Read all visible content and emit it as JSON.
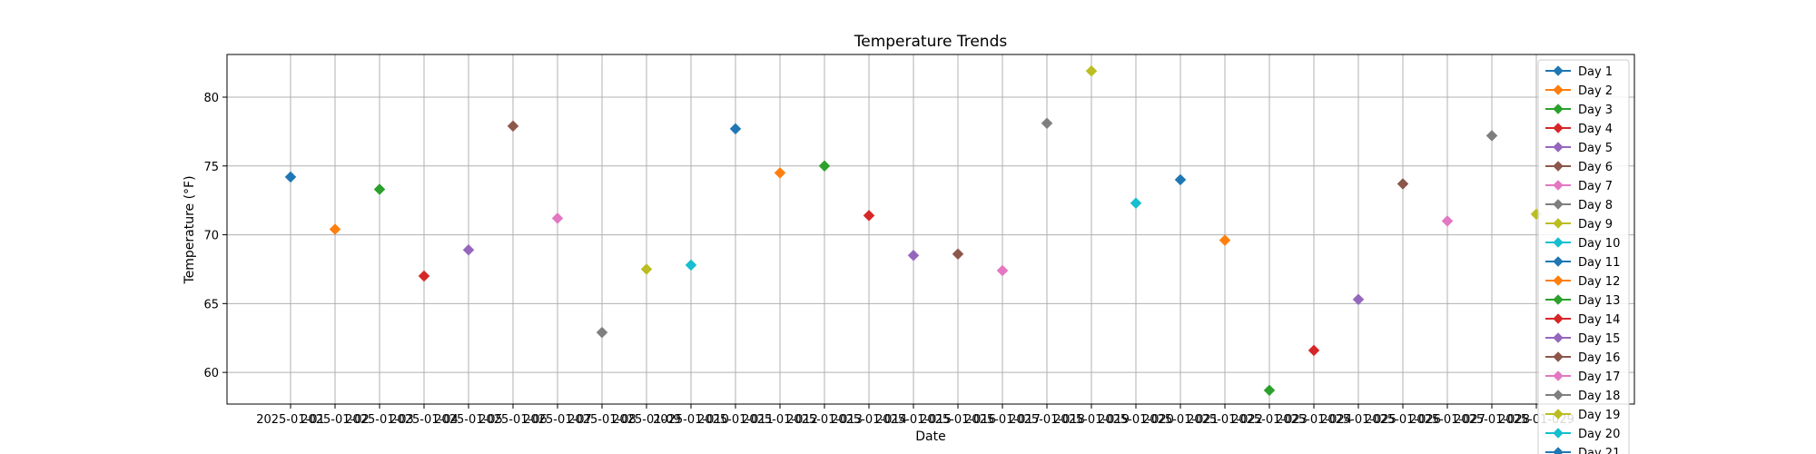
{
  "chart_data": {
    "type": "scatter",
    "title": "Temperature Trends",
    "xlabel": "Date",
    "ylabel": "Temperature (°F)",
    "x_tick_label": "2025-01-0",
    "y_ticks": [
      60,
      65,
      70,
      75,
      80
    ],
    "ylim": [
      57.7,
      83.1
    ],
    "grid": true,
    "legend_position": "upper right",
    "marker": "diamond",
    "colors": [
      "#1f77b4",
      "#ff7f0e",
      "#2ca02c",
      "#d62728",
      "#9467bd",
      "#8c564b",
      "#e377c2",
      "#7f7f7f",
      "#bcbd22",
      "#17becf"
    ],
    "series": [
      {
        "name": "Day 1",
        "x": 1,
        "y": 74.2
      },
      {
        "name": "Day 2",
        "x": 2,
        "y": 70.4
      },
      {
        "name": "Day 3",
        "x": 3,
        "y": 73.3
      },
      {
        "name": "Day 4",
        "x": 4,
        "y": 67.0
      },
      {
        "name": "Day 5",
        "x": 5,
        "y": 68.9
      },
      {
        "name": "Day 6",
        "x": 6,
        "y": 77.9
      },
      {
        "name": "Day 7",
        "x": 7,
        "y": 71.2
      },
      {
        "name": "Day 8",
        "x": 8,
        "y": 62.9
      },
      {
        "name": "Day 9",
        "x": 9,
        "y": 67.5
      },
      {
        "name": "Day 10",
        "x": 10,
        "y": 67.8
      },
      {
        "name": "Day 11",
        "x": 11,
        "y": 77.7
      },
      {
        "name": "Day 12",
        "x": 12,
        "y": 74.5
      },
      {
        "name": "Day 13",
        "x": 13,
        "y": 75.0
      },
      {
        "name": "Day 14",
        "x": 14,
        "y": 71.4
      },
      {
        "name": "Day 15",
        "x": 15,
        "y": 68.5
      },
      {
        "name": "Day 16",
        "x": 16,
        "y": 68.6
      },
      {
        "name": "Day 17",
        "x": 17,
        "y": 67.4
      },
      {
        "name": "Day 18",
        "x": 18,
        "y": 78.1
      },
      {
        "name": "Day 19",
        "x": 19,
        "y": 81.9
      },
      {
        "name": "Day 20",
        "x": 20,
        "y": 72.3
      },
      {
        "name": "Day 21",
        "x": 21,
        "y": 74.0
      },
      {
        "name": "",
        "x": 22,
        "y": 69.6
      },
      {
        "name": "",
        "x": 23,
        "y": 58.7
      },
      {
        "name": "",
        "x": 24,
        "y": 61.6
      },
      {
        "name": "",
        "x": 25,
        "y": 65.3
      },
      {
        "name": "",
        "x": 26,
        "y": 73.7
      },
      {
        "name": "",
        "x": 27,
        "y": 71.0
      },
      {
        "name": "",
        "x": 28,
        "y": 77.2
      },
      {
        "name": "",
        "x": 29,
        "y": 71.5
      }
    ]
  }
}
